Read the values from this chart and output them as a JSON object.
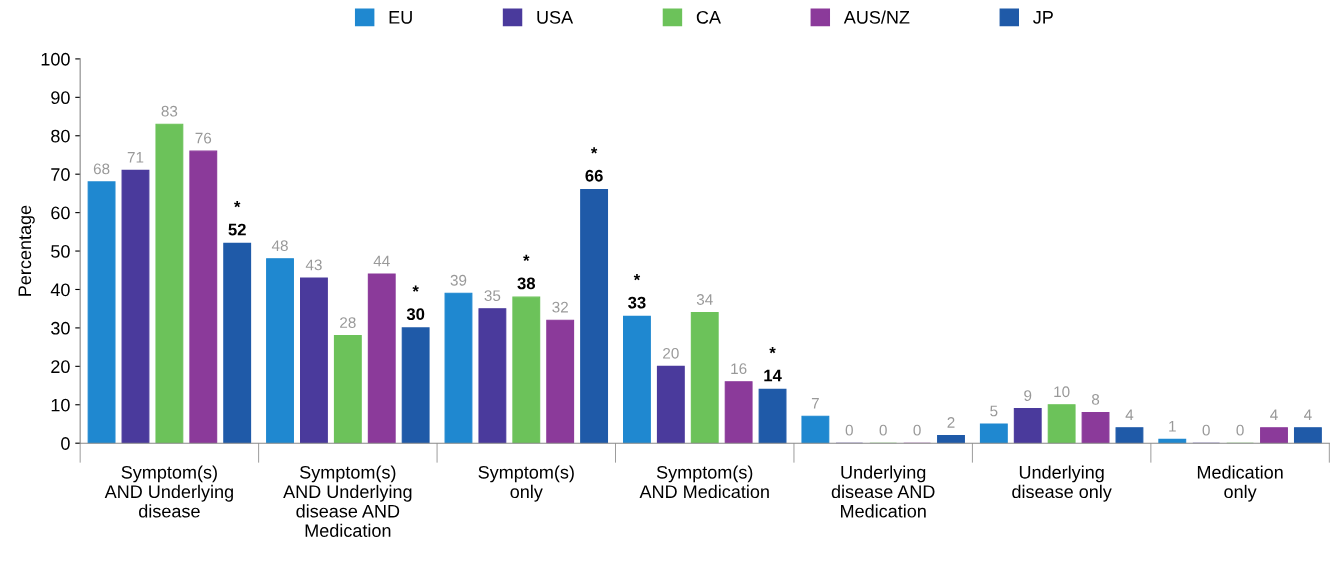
{
  "chart_data": {
    "type": "bar",
    "ylabel": "Percentage",
    "categories": [
      "Symptom(s)\nAND Underlying\ndisease",
      "Symptom(s)\nAND Underlying\ndisease AND\nMedication",
      "Symptom(s)\nonly",
      "Symptom(s)\nAND Medication",
      "Underlying\ndisease AND\nMedication",
      "Underlying\ndisease only",
      "Medication\nonly"
    ],
    "series": [
      {
        "name": "EU",
        "color": "#1f88d0",
        "values": [
          68,
          48,
          39,
          33,
          7,
          5,
          1
        ],
        "value_labels": [
          "68",
          "48",
          "39",
          "*\n33",
          "7",
          "5",
          "1"
        ]
      },
      {
        "name": "USA",
        "color": "#4a3a9c",
        "values": [
          71,
          43,
          35,
          20,
          0,
          9,
          0
        ],
        "value_labels": [
          "71",
          "43",
          "35",
          "20",
          "0",
          "9",
          "0"
        ]
      },
      {
        "name": "CA",
        "color": "#6cc25a",
        "values": [
          83,
          28,
          38,
          34,
          0,
          10,
          0
        ],
        "value_labels": [
          "83",
          "28",
          "*\n38",
          "34",
          "0",
          "10",
          "0"
        ]
      },
      {
        "name": "AUS/NZ",
        "color": "#8b3a9a",
        "values": [
          76,
          44,
          32,
          16,
          0,
          8,
          4
        ],
        "value_labels": [
          "76",
          "44",
          "32",
          "16",
          "0",
          "8",
          "4"
        ]
      },
      {
        "name": "JP",
        "color": "#1f5aa8",
        "values": [
          52,
          30,
          66,
          14,
          2,
          4,
          4
        ],
        "value_labels": [
          "*\n52",
          "*\n30",
          "*\n66",
          "*\n14",
          "2",
          "4",
          "4"
        ]
      }
    ],
    "ylim": [
      0,
      100
    ],
    "yticks": [
      0,
      10,
      20,
      30,
      40,
      50,
      60,
      70,
      80,
      90,
      100
    ],
    "legend": "top",
    "grid": false
  }
}
